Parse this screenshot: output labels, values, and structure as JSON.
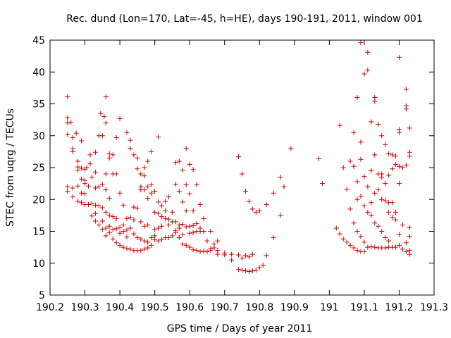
{
  "chart_data": {
    "type": "scatter",
    "title": "Rec. dund (Lon=170, Lat=-45, h=HE), days 190-191, 2011, window 001",
    "xlabel": "GPS time / Days of year 2011",
    "ylabel": "STEC from uqrg / TECUs",
    "xlim": [
      190.2,
      191.3
    ],
    "ylim": [
      5,
      45
    ],
    "xticks": [
      "190.2",
      "190.3",
      "190.4",
      "190.5",
      "190.6",
      "190.7",
      "190.8",
      "190.9",
      "191",
      "191.1",
      "191.2",
      "191.3"
    ],
    "yticks": [
      "5",
      "10",
      "15",
      "20",
      "25",
      "30",
      "35",
      "40",
      "45"
    ],
    "grid": false,
    "legend": "none",
    "marker": "plus",
    "marker_color": "#cc0000",
    "points": [
      [
        190.25,
        36.1
      ],
      [
        190.25,
        32.8
      ],
      [
        190.25,
        32.0
      ],
      [
        190.25,
        30.2
      ],
      [
        190.25,
        22.0
      ],
      [
        190.25,
        21.3
      ],
      [
        190.26,
        32.1
      ],
      [
        190.265,
        29.7
      ],
      [
        190.265,
        28.0
      ],
      [
        190.265,
        27.5
      ],
      [
        190.265,
        20.4
      ],
      [
        190.265,
        21.8
      ],
      [
        190.275,
        30.4
      ],
      [
        190.28,
        26.0
      ],
      [
        190.28,
        25.1
      ],
      [
        190.28,
        24.6
      ],
      [
        190.28,
        22.1
      ],
      [
        190.28,
        19.7
      ],
      [
        190.29,
        29.2
      ],
      [
        190.29,
        24.9
      ],
      [
        190.29,
        23.2
      ],
      [
        190.29,
        21.0
      ],
      [
        190.29,
        19.5
      ],
      [
        190.3,
        24.7
      ],
      [
        190.3,
        23.0
      ],
      [
        190.3,
        22.5
      ],
      [
        190.3,
        20.9
      ],
      [
        190.3,
        19.2
      ],
      [
        190.305,
        25.0
      ],
      [
        190.31,
        22.1
      ],
      [
        190.31,
        19.2
      ],
      [
        190.315,
        27.0
      ],
      [
        190.315,
        25.6
      ],
      [
        190.32,
        23.5
      ],
      [
        190.32,
        19.4
      ],
      [
        190.32,
        17.4
      ],
      [
        190.33,
        27.4
      ],
      [
        190.33,
        24.3
      ],
      [
        190.33,
        21.8
      ],
      [
        190.33,
        19.1
      ],
      [
        190.33,
        17.8
      ],
      [
        190.33,
        16.6
      ],
      [
        190.34,
        30.0
      ],
      [
        190.34,
        22.0
      ],
      [
        190.34,
        19.0
      ],
      [
        190.34,
        16.0
      ],
      [
        190.345,
        33.5
      ],
      [
        190.35,
        30.0
      ],
      [
        190.35,
        22.4
      ],
      [
        190.35,
        18.7
      ],
      [
        190.35,
        16.6
      ],
      [
        190.35,
        15.3
      ],
      [
        190.355,
        33.0
      ],
      [
        190.36,
        36.1
      ],
      [
        190.36,
        32.0
      ],
      [
        190.36,
        24.0
      ],
      [
        190.36,
        21.5
      ],
      [
        190.36,
        18.0
      ],
      [
        190.36,
        15.5
      ],
      [
        190.36,
        14.3
      ],
      [
        190.37,
        27.2
      ],
      [
        190.37,
        26.5
      ],
      [
        190.37,
        20.2
      ],
      [
        190.37,
        17.5
      ],
      [
        190.37,
        15.8
      ],
      [
        190.37,
        14.8
      ],
      [
        190.38,
        27.0
      ],
      [
        190.38,
        24.0
      ],
      [
        190.38,
        17.3
      ],
      [
        190.38,
        15.3
      ],
      [
        190.38,
        13.8
      ],
      [
        190.39,
        29.7
      ],
      [
        190.39,
        24.0
      ],
      [
        190.39,
        17.0
      ],
      [
        190.39,
        15.4
      ],
      [
        190.39,
        13.2
      ],
      [
        190.4,
        32.7
      ],
      [
        190.4,
        21.0
      ],
      [
        190.4,
        15.6
      ],
      [
        190.4,
        14.7
      ],
      [
        190.4,
        12.8
      ],
      [
        190.41,
        19.1
      ],
      [
        190.41,
        16.0
      ],
      [
        190.41,
        15.0
      ],
      [
        190.41,
        12.5
      ],
      [
        190.42,
        30.5
      ],
      [
        190.42,
        17.0
      ],
      [
        190.42,
        15.2
      ],
      [
        190.42,
        14.1
      ],
      [
        190.42,
        12.3
      ],
      [
        190.43,
        29.3
      ],
      [
        190.43,
        28.0
      ],
      [
        190.43,
        17.2
      ],
      [
        190.43,
        15.5
      ],
      [
        190.43,
        12.2
      ],
      [
        190.44,
        27.0
      ],
      [
        190.44,
        18.8
      ],
      [
        190.44,
        16.8
      ],
      [
        190.44,
        14.6
      ],
      [
        190.44,
        12.0
      ],
      [
        190.45,
        26.5
      ],
      [
        190.45,
        24.8
      ],
      [
        190.45,
        18.6
      ],
      [
        190.45,
        14.0
      ],
      [
        190.45,
        12.0
      ],
      [
        190.46,
        24.0
      ],
      [
        190.46,
        22.0
      ],
      [
        190.46,
        21.5
      ],
      [
        190.46,
        16.5
      ],
      [
        190.46,
        13.8
      ],
      [
        190.46,
        12.0
      ],
      [
        190.47,
        25.0
      ],
      [
        190.47,
        23.7
      ],
      [
        190.47,
        21.5
      ],
      [
        190.47,
        15.8
      ],
      [
        190.47,
        13.5
      ],
      [
        190.47,
        12.2
      ],
      [
        190.48,
        26.0
      ],
      [
        190.48,
        22.0
      ],
      [
        190.48,
        20.2
      ],
      [
        190.48,
        16.0
      ],
      [
        190.48,
        13.3
      ],
      [
        190.48,
        12.4
      ],
      [
        190.49,
        27.5
      ],
      [
        190.49,
        22.3
      ],
      [
        190.49,
        21.0
      ],
      [
        190.49,
        14.0
      ],
      [
        190.49,
        12.8
      ],
      [
        190.5,
        21.3
      ],
      [
        190.5,
        18.0
      ],
      [
        190.5,
        15.3
      ],
      [
        190.5,
        14.3
      ],
      [
        190.5,
        13.7
      ],
      [
        190.51,
        29.8
      ],
      [
        190.51,
        19.6
      ],
      [
        190.51,
        17.8
      ],
      [
        190.51,
        15.5
      ],
      [
        190.51,
        13.5
      ],
      [
        190.52,
        19.0
      ],
      [
        190.52,
        17.3
      ],
      [
        190.52,
        15.8
      ],
      [
        190.52,
        13.7
      ],
      [
        190.53,
        19.7
      ],
      [
        190.53,
        18.2
      ],
      [
        190.53,
        17.0
      ],
      [
        190.53,
        14.0
      ],
      [
        190.54,
        20.4
      ],
      [
        190.54,
        16.9
      ],
      [
        190.54,
        16.0
      ],
      [
        190.54,
        14.0
      ],
      [
        190.55,
        18.0
      ],
      [
        190.55,
        16.5
      ],
      [
        190.55,
        14.3
      ],
      [
        190.56,
        25.8
      ],
      [
        190.56,
        22.4
      ],
      [
        190.56,
        16.5
      ],
      [
        190.56,
        15.1
      ],
      [
        190.56,
        14.8
      ],
      [
        190.57,
        26.0
      ],
      [
        190.57,
        21.3
      ],
      [
        190.57,
        16.0
      ],
      [
        190.57,
        15.5
      ],
      [
        190.57,
        14.0
      ],
      [
        190.58,
        24.6
      ],
      [
        190.58,
        19.6
      ],
      [
        190.58,
        16.1
      ],
      [
        190.58,
        14.5
      ],
      [
        190.58,
        13.0
      ],
      [
        190.59,
        28.0
      ],
      [
        190.59,
        22.3
      ],
      [
        190.59,
        18.2
      ],
      [
        190.59,
        15.7
      ],
      [
        190.59,
        12.8
      ],
      [
        190.6,
        25.5
      ],
      [
        190.6,
        20.9
      ],
      [
        190.6,
        15.8
      ],
      [
        190.6,
        14.7
      ],
      [
        190.6,
        12.5
      ],
      [
        190.61,
        24.7
      ],
      [
        190.61,
        18.2
      ],
      [
        190.61,
        15.9
      ],
      [
        190.61,
        14.8
      ],
      [
        190.61,
        12.1
      ],
      [
        190.62,
        22.3
      ],
      [
        190.62,
        16.2
      ],
      [
        190.62,
        15.0
      ],
      [
        190.62,
        12.0
      ],
      [
        190.63,
        19.2
      ],
      [
        190.63,
        15.5
      ],
      [
        190.63,
        15.0
      ],
      [
        190.63,
        11.8
      ],
      [
        190.64,
        17.0
      ],
      [
        190.64,
        15.0
      ],
      [
        190.64,
        11.9
      ],
      [
        190.65,
        13.5
      ],
      [
        190.65,
        11.8
      ],
      [
        190.66,
        15.0
      ],
      [
        190.66,
        12.3
      ],
      [
        190.66,
        12.0
      ],
      [
        190.67,
        13.0
      ],
      [
        190.67,
        12.4
      ],
      [
        190.68,
        13.5
      ],
      [
        190.68,
        12.0
      ],
      [
        190.68,
        11.4
      ],
      [
        190.7,
        11.6
      ],
      [
        190.7,
        11.3
      ],
      [
        190.72,
        11.4
      ],
      [
        190.72,
        10.5
      ],
      [
        190.74,
        26.7
      ],
      [
        190.74,
        11.3
      ],
      [
        190.74,
        9.0
      ],
      [
        190.75,
        24.0
      ],
      [
        190.75,
        10.8
      ],
      [
        190.75,
        8.9
      ],
      [
        190.76,
        21.3
      ],
      [
        190.76,
        11.2
      ],
      [
        190.76,
        8.8
      ],
      [
        190.77,
        19.7
      ],
      [
        190.77,
        11.0
      ],
      [
        190.77,
        8.7
      ],
      [
        190.78,
        18.5
      ],
      [
        190.78,
        11.4
      ],
      [
        190.78,
        8.8
      ],
      [
        190.79,
        18.0
      ],
      [
        190.79,
        8.9
      ],
      [
        190.8,
        18.2
      ],
      [
        190.8,
        9.3
      ],
      [
        190.81,
        9.7
      ],
      [
        190.82,
        19.2
      ],
      [
        190.82,
        11.2
      ],
      [
        190.84,
        21.0
      ],
      [
        190.84,
        14.0
      ],
      [
        190.86,
        23.5
      ],
      [
        190.86,
        17.5
      ],
      [
        190.87,
        22.0
      ],
      [
        190.89,
        28.0
      ],
      [
        190.97,
        26.4
      ],
      [
        190.98,
        22.5
      ],
      [
        191.02,
        15.5
      ],
      [
        191.03,
        31.6
      ],
      [
        191.03,
        14.6
      ],
      [
        191.04,
        25.0
      ],
      [
        191.04,
        13.8
      ],
      [
        191.05,
        21.6
      ],
      [
        191.05,
        13.3
      ],
      [
        191.06,
        26.0
      ],
      [
        191.06,
        18.5
      ],
      [
        191.06,
        12.8
      ],
      [
        191.07,
        30.5
      ],
      [
        191.07,
        25.2
      ],
      [
        191.07,
        16.3
      ],
      [
        191.07,
        12.4
      ],
      [
        191.08,
        36.0
      ],
      [
        191.08,
        22.8
      ],
      [
        191.08,
        20.0
      ],
      [
        191.08,
        15.0
      ],
      [
        191.08,
        12.0
      ],
      [
        191.09,
        44.6
      ],
      [
        191.09,
        29.0
      ],
      [
        191.09,
        26.3
      ],
      [
        191.09,
        20.5
      ],
      [
        191.09,
        14.2
      ],
      [
        191.09,
        11.8
      ],
      [
        191.1,
        39.7
      ],
      [
        191.1,
        23.6
      ],
      [
        191.1,
        19.0
      ],
      [
        191.1,
        13.3
      ],
      [
        191.1,
        11.8
      ],
      [
        191.11,
        43.1
      ],
      [
        191.11,
        40.3
      ],
      [
        191.11,
        22.0
      ],
      [
        191.11,
        18.0
      ],
      [
        191.11,
        12.5
      ],
      [
        191.12,
        32.2
      ],
      [
        191.12,
        24.5
      ],
      [
        191.12,
        19.5
      ],
      [
        191.12,
        17.5
      ],
      [
        191.12,
        12.6
      ],
      [
        191.13,
        36.0
      ],
      [
        191.13,
        35.4
      ],
      [
        191.13,
        27.0
      ],
      [
        191.13,
        21.0
      ],
      [
        191.13,
        16.3
      ],
      [
        191.13,
        12.5
      ],
      [
        191.14,
        31.8
      ],
      [
        191.14,
        24.0
      ],
      [
        191.14,
        21.5
      ],
      [
        191.14,
        15.8
      ],
      [
        191.14,
        12.4
      ],
      [
        191.15,
        30.0
      ],
      [
        191.15,
        24.0
      ],
      [
        191.15,
        23.5
      ],
      [
        191.15,
        20.0
      ],
      [
        191.15,
        15.0
      ],
      [
        191.15,
        12.4
      ],
      [
        191.16,
        28.6
      ],
      [
        191.16,
        22.5
      ],
      [
        191.16,
        19.8
      ],
      [
        191.16,
        14.0
      ],
      [
        191.16,
        12.4
      ],
      [
        191.17,
        27.2
      ],
      [
        191.17,
        23.8
      ],
      [
        191.17,
        19.5
      ],
      [
        191.17,
        18.0
      ],
      [
        191.17,
        13.5
      ],
      [
        191.17,
        12.5
      ],
      [
        191.18,
        27.0
      ],
      [
        191.18,
        24.8
      ],
      [
        191.18,
        19.5
      ],
      [
        191.18,
        17.2
      ],
      [
        191.18,
        12.5
      ],
      [
        191.19,
        26.8
      ],
      [
        191.19,
        25.5
      ],
      [
        191.19,
        18.0
      ],
      [
        191.19,
        16.8
      ],
      [
        191.19,
        12.5
      ],
      [
        191.2,
        42.3
      ],
      [
        191.2,
        31.0
      ],
      [
        191.2,
        30.5
      ],
      [
        191.2,
        25.2
      ],
      [
        191.2,
        22.5
      ],
      [
        191.2,
        14.5
      ],
      [
        191.2,
        12.8
      ],
      [
        191.21,
        25.0
      ],
      [
        191.21,
        16.0
      ],
      [
        191.21,
        12.2
      ],
      [
        191.22,
        37.3
      ],
      [
        191.22,
        34.7
      ],
      [
        191.22,
        34.2
      ],
      [
        191.22,
        25.4
      ],
      [
        191.22,
        13.2
      ],
      [
        191.22,
        11.8
      ],
      [
        191.23,
        31.2
      ],
      [
        191.23,
        27.4
      ],
      [
        191.23,
        26.8
      ],
      [
        191.23,
        15.6
      ],
      [
        191.23,
        14.2
      ],
      [
        191.23,
        12.0
      ],
      [
        191.23,
        11.4
      ]
    ]
  }
}
